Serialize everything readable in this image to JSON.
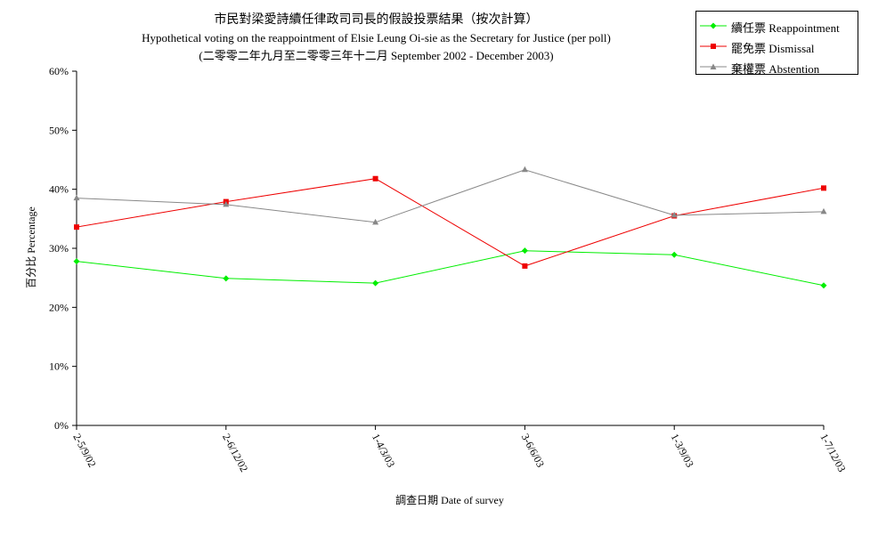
{
  "chart_data": {
    "type": "line",
    "title": "市民對梁愛詩續任律政司司長的假設投票結果（按次計算）",
    "subtitle": "Hypothetical voting on the reappointment of  Elsie Leung Oi-sie as the Secretary for Justice (per poll)",
    "subtitle2": "(二零零二年九月至二零零三年十二月 September 2002 - December 2003)",
    "xlabel": "調查日期 Date of survey",
    "ylabel": "百分比 Percentage",
    "categories": [
      "2-5/9/02",
      "2-6/12/02",
      "1-4/3/03",
      "3-6/6/03",
      "1-3/9/03",
      "1-7/12/03"
    ],
    "ylim": [
      0,
      60
    ],
    "yticks": [
      "0%",
      "10%",
      "20%",
      "30%",
      "40%",
      "50%",
      "60%"
    ],
    "grid": false,
    "legend_position": "top-right",
    "series": [
      {
        "name": "續任票 Reappointment",
        "color": "#00ee00",
        "marker": "diamond",
        "values": [
          27.8,
          24.9,
          24.1,
          29.6,
          28.9,
          23.7
        ]
      },
      {
        "name": "罷免票 Dismissal",
        "color": "#ee0000",
        "marker": "square",
        "values": [
          33.6,
          37.9,
          41.8,
          27.0,
          35.5,
          40.2
        ]
      },
      {
        "name": "棄權票 Abstention",
        "color": "#888888",
        "marker": "triangle",
        "values": [
          38.5,
          37.4,
          34.4,
          43.3,
          35.6,
          36.2
        ]
      }
    ]
  }
}
